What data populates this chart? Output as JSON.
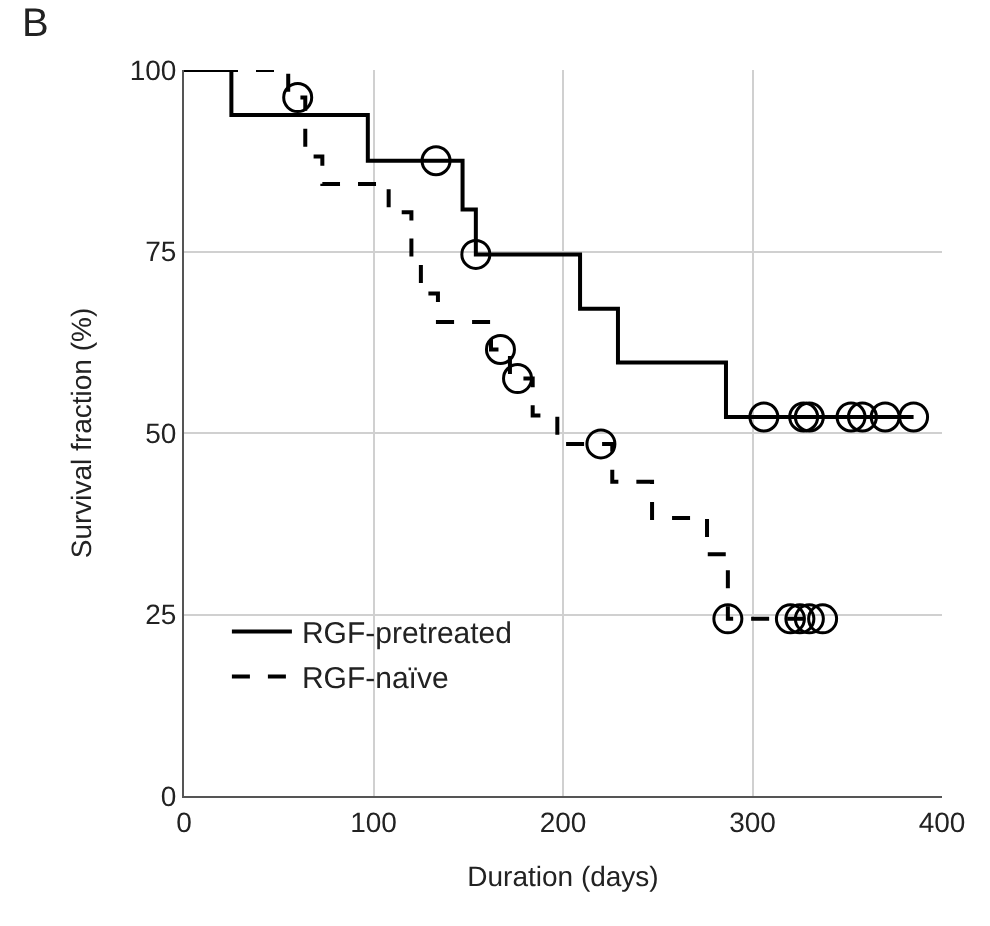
{
  "chart_data": {
    "type": "step",
    "xlabel": "Duration (days)",
    "ylabel": "Survival fraction (%)",
    "annotations": [
      "B"
    ],
    "xlim": [
      0,
      400
    ],
    "xticks": [
      0,
      100,
      200,
      300,
      400
    ],
    "ylim": [
      0,
      100
    ],
    "yticks": [
      0,
      25,
      50,
      75,
      100
    ],
    "grid": true,
    "legend": "bottom left",
    "series": [
      {
        "name": "RGF-pretreated",
        "color": "#000000",
        "line_style": "solid",
        "x": [
          0,
          25,
          97,
          147,
          154,
          209,
          229,
          286,
          385
        ],
        "values": [
          100,
          93.8,
          87.5,
          80.8,
          74.6,
          67.1,
          59.7,
          52.2,
          52.2
        ]
      },
      {
        "name": "RGF-naïve",
        "color": "#000000",
        "line_style": "dashed",
        "x": [
          0,
          55,
          64,
          73,
          108,
          120,
          125,
          134,
          162,
          172,
          184,
          197,
          226,
          247,
          276,
          287,
          337
        ],
        "values": [
          100,
          96.2,
          88.1,
          84.3,
          80.4,
          73.8,
          69.2,
          65.3,
          61.5,
          57.5,
          52.4,
          48.5,
          43.3,
          38.3,
          33.3,
          24.4,
          24.4
        ]
      },
      {
        "type": "scatter",
        "color": "#000000",
        "marker": "circle",
        "x": [
          133,
          154,
          306,
          327,
          330,
          352,
          358,
          370,
          385
        ],
        "values": [
          87.5,
          74.6,
          52.2,
          52.2,
          52.2,
          52.2,
          52.2,
          52.2,
          52.2
        ]
      },
      {
        "type": "scatter",
        "color": "#000000",
        "marker": "circle",
        "x": [
          60,
          167,
          176,
          220,
          287,
          320,
          325,
          330,
          337
        ],
        "values": [
          96.2,
          61.5,
          57.5,
          48.5,
          24.4,
          24.4,
          24.4,
          24.4,
          24.4
        ]
      }
    ]
  }
}
